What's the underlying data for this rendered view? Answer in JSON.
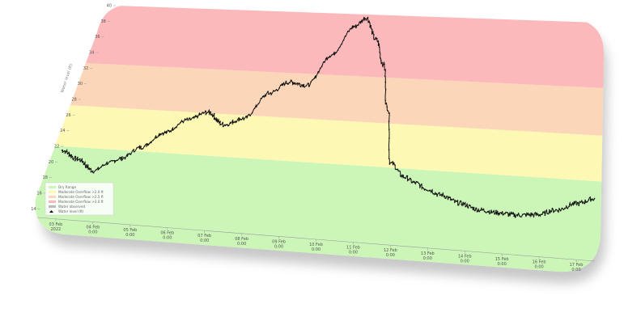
{
  "chart_data": {
    "type": "line",
    "ylabel": "Water level (ft)",
    "bands": [
      {
        "name": "Dry Range",
        "from": 0,
        "to": 22,
        "color": "#cbf6b8"
      },
      {
        "name": "Moderate Overflow >2.0 ft",
        "from": 22,
        "to": 27.2,
        "color": "#fdf8b4"
      },
      {
        "name": "Moderate Overflow >2.5 ft",
        "from": 27.2,
        "to": 32.6,
        "color": "#fbd6b8"
      },
      {
        "name": "Moderate Overflow >3.0 ft",
        "from": 32.6,
        "to": 40,
        "color": "#fcb9bb"
      }
    ],
    "legend": [
      {
        "label": "Dry Range",
        "color": "#cbf6b8"
      },
      {
        "label": "Moderate Overflow >2.0 ft",
        "color": "#fdf8b4"
      },
      {
        "label": "Moderate Overflow >2.5 ft",
        "color": "#fbd6b8"
      },
      {
        "label": "Moderate Overflow >3.0 ft",
        "color": "#fcb9bb"
      },
      {
        "label": "Water observed",
        "color": "#bbbbbb"
      },
      {
        "label": "Water level (ft)",
        "color": "#000000"
      }
    ],
    "x_ticks": [
      [
        "03 Feb",
        "2022"
      ],
      [
        "04 Feb",
        "0:00"
      ],
      [
        "05 Feb",
        "0:00"
      ],
      [
        "06 Feb",
        "0:00"
      ],
      [
        "07 Feb",
        "0:00"
      ],
      [
        "08 Feb",
        "0:00"
      ],
      [
        "09 Feb",
        "0:00"
      ],
      [
        "10 Feb",
        "0:00"
      ],
      [
        "11 Feb",
        "0:00"
      ],
      [
        "12 Feb",
        "0:00"
      ],
      [
        "13 Feb",
        "0:00"
      ],
      [
        "14 Feb",
        "0:00"
      ],
      [
        "15 Feb",
        "0:00"
      ],
      [
        "16 Feb",
        "0:00"
      ],
      [
        "17 Feb",
        "0:00"
      ]
    ],
    "y_ticks": [
      14,
      16,
      18,
      20,
      22,
      24,
      26,
      28,
      30,
      32,
      34,
      36,
      38,
      40
    ],
    "ylim": [
      13,
      40
    ],
    "xlim": [
      0,
      14
    ],
    "series": [
      {
        "name": "Water level (ft)",
        "color": "#111111",
        "x": [
          0,
          0.5,
          1,
          1.3,
          1.6,
          2,
          2.5,
          3,
          3.5,
          4,
          4.5,
          5,
          5.5,
          6,
          6.5,
          7,
          7.3,
          7.7,
          8,
          8.3,
          8.6,
          9,
          9.3,
          9.6,
          10,
          10.5,
          11,
          11.5,
          12,
          12.5,
          13,
          13.5,
          14
        ],
        "y": [
          21.5,
          20.5,
          19.2,
          20.3,
          21,
          22.5,
          24.5,
          26.2,
          27.3,
          25.9,
          26.8,
          30,
          31.5,
          31.2,
          35,
          38.5,
          39.6,
          37,
          34.2,
          29,
          22.5,
          21,
          20.4,
          19.8,
          19.2,
          18.4,
          17.8,
          17.6,
          17.5,
          17.7,
          18.4,
          19.3,
          20
        ]
      }
    ]
  }
}
